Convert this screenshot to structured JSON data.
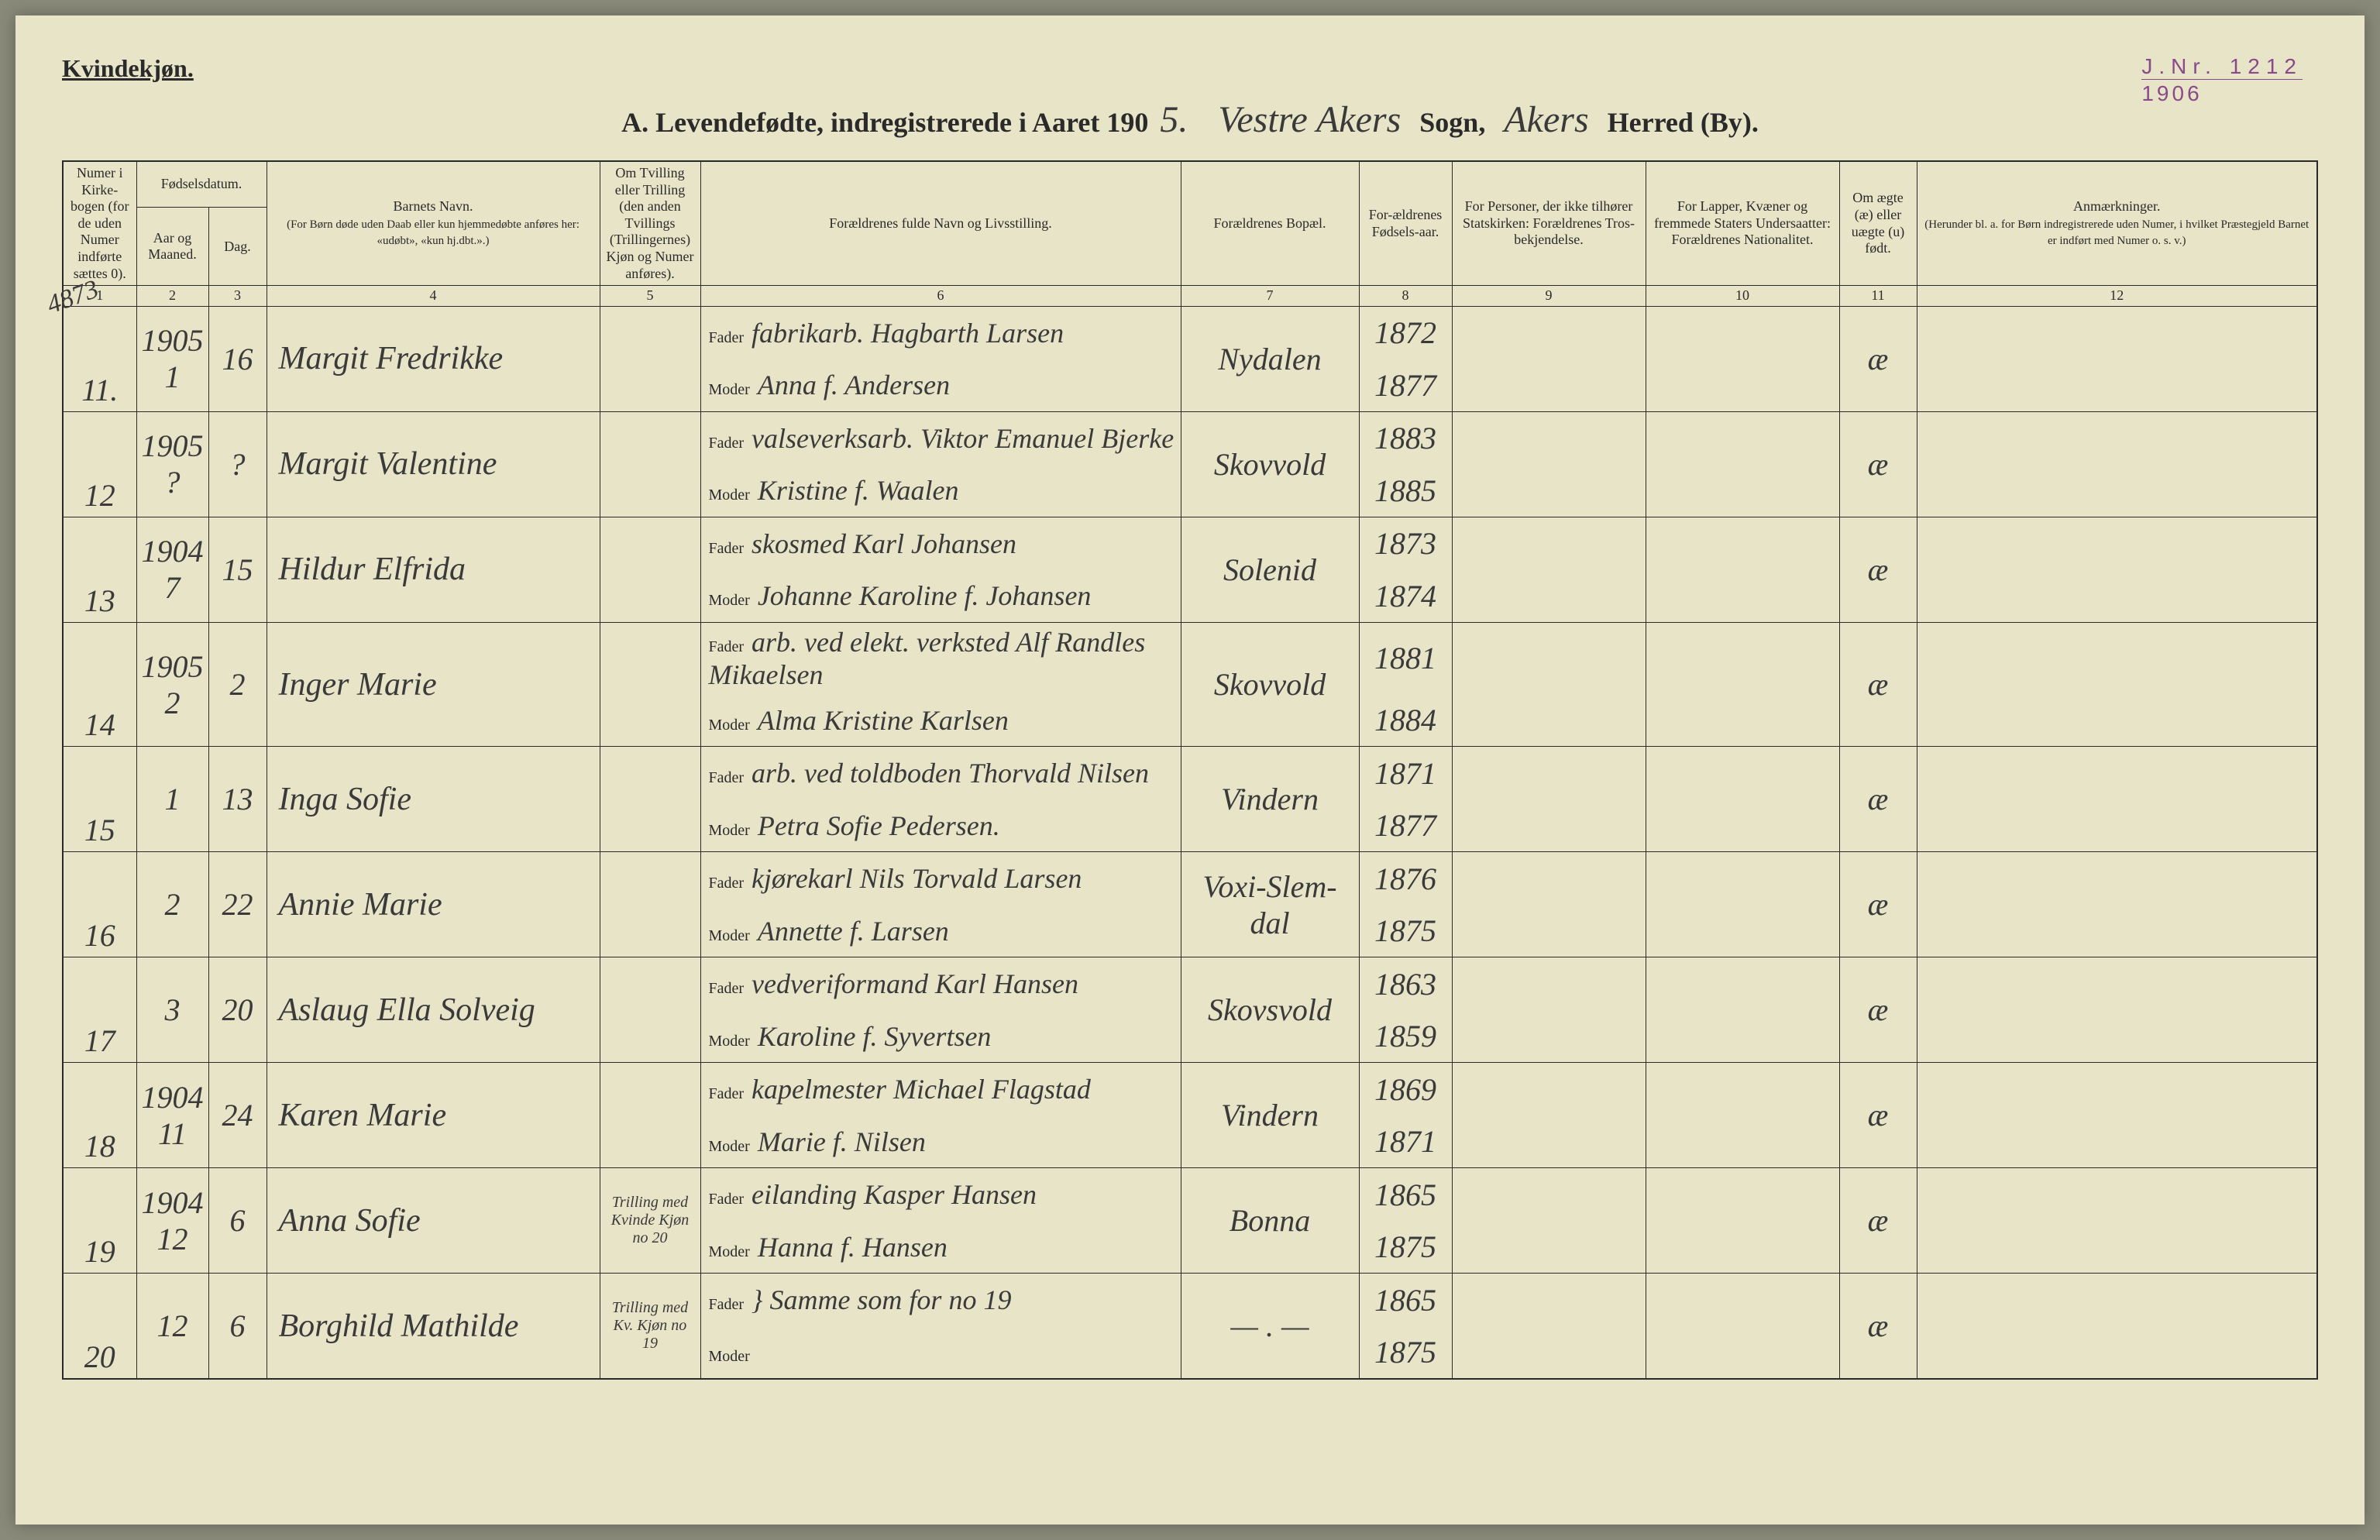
{
  "header": {
    "gender": "Kvindekjøn.",
    "title_prefix": "A.  Levendefødte, indregistrerede i Aaret 190",
    "year_suffix": "5.",
    "parish_label": "Sogn,",
    "parish": "Vestre Akers",
    "district_label": "Herred (By).",
    "district": "Akers"
  },
  "stamp": {
    "jnr_label": "J.Nr.",
    "jnr": "1212",
    "year": "1906"
  },
  "margin_note": "4873",
  "columns": {
    "h1": "Numer i Kirke-bogen (for de uden Numer indførte sættes 0).",
    "h2": "Fødselsdatum.",
    "h2a": "Aar og Maaned.",
    "h2b": "Dag.",
    "h4": "Barnets Navn.",
    "h4sub": "(For Børn døde uden Daab eller kun hjemmedøbte anføres her: «udøbt», «kun hj.dbt.».)",
    "h5": "Om Tvilling eller Trilling (den anden Tvillings (Trillingernes) Kjøn og Numer anføres).",
    "h6": "Forældrenes fulde Navn og Livsstilling.",
    "h7": "Forældrenes Bopæl.",
    "h8": "For-ældrenes Fødsels-aar.",
    "h9": "For Personer, der ikke tilhører Statskirken: Forældrenes Tros-bekjendelse.",
    "h10": "For Lapper, Kvæner og fremmede Staters Undersaatter: Forældrenes Nationalitet.",
    "h11": "Om ægte (æ) eller uægte (u) født.",
    "h12": "Anmærkninger.",
    "h12sub": "(Herunder bl. a. for Børn indregistrerede uden Numer, i hvilket Præstegjeld Barnet er indført med Numer o. s. v.)"
  },
  "col_nums": [
    "1",
    "2",
    "3",
    "4",
    "5",
    "6",
    "7",
    "8",
    "9",
    "10",
    "11",
    "12"
  ],
  "parent_labels": {
    "father": "Fader",
    "mother": "Moder"
  },
  "entries": [
    {
      "num": "11.",
      "year_month": "1905  1",
      "day": "16",
      "name": "Margit Fredrikke",
      "twin": "",
      "father": "fabrikarb. Hagbarth Larsen",
      "mother": "Anna f. Andersen",
      "residence": "Nydalen",
      "father_year": "1872",
      "mother_year": "1877",
      "legit": "æ"
    },
    {
      "num": "12",
      "year_month": "1905  ?",
      "day": "?",
      "name": "Margit Valentine",
      "twin": "",
      "father": "valseverksarb. Viktor Emanuel Bjerke",
      "mother": "Kristine f. Waalen",
      "residence": "Skovvold",
      "father_year": "1883",
      "mother_year": "1885",
      "legit": "æ"
    },
    {
      "num": "13",
      "year_month": "1904  7",
      "day": "15",
      "name": "Hildur Elfrida",
      "twin": "",
      "father": "skosmed Karl Johansen",
      "mother": "Johanne Karoline f. Johansen",
      "residence": "Solenid",
      "father_year": "1873",
      "mother_year": "1874",
      "legit": "æ"
    },
    {
      "num": "14",
      "year_month": "1905  2",
      "day": "2",
      "name": "Inger Marie",
      "twin": "",
      "father": "arb. ved elekt. verksted Alf Randles Mikaelsen",
      "mother": "Alma Kristine Karlsen",
      "residence": "Skovvold",
      "father_year": "1881",
      "mother_year": "1884",
      "legit": "æ"
    },
    {
      "num": "15",
      "year_month": "1",
      "day": "13",
      "name": "Inga Sofie",
      "twin": "",
      "father": "arb. ved toldboden Thorvald Nilsen",
      "mother": "Petra Sofie Pedersen.",
      "residence": "Vindern",
      "father_year": "1871",
      "mother_year": "1877",
      "legit": "æ"
    },
    {
      "num": "16",
      "year_month": "2",
      "day": "22",
      "name": "Annie Marie",
      "twin": "",
      "father": "kjørekarl Nils Torvald Larsen",
      "mother": "Annette f. Larsen",
      "residence": "Voxi-Slem-dal",
      "father_year": "1876",
      "mother_year": "1875",
      "legit": "æ"
    },
    {
      "num": "17",
      "year_month": "3",
      "day": "20",
      "name": "Aslaug Ella Solveig",
      "twin": "",
      "father": "vedveriformand Karl Hansen",
      "mother": "Karoline f. Syvertsen",
      "residence": "Skovsvold",
      "father_year": "1863",
      "mother_year": "1859",
      "legit": "æ"
    },
    {
      "num": "18",
      "year_month": "1904  11",
      "day": "24",
      "name": "Karen Marie",
      "twin": "",
      "father": "kapelmester Michael Flagstad",
      "mother": "Marie f. Nilsen",
      "residence": "Vindern",
      "father_year": "1869",
      "mother_year": "1871",
      "legit": "æ"
    },
    {
      "num": "19",
      "year_month": "1904  12",
      "day": "6",
      "name": "Anna Sofie",
      "twin": "Trilling med Kvinde Kjøn no 20",
      "father": "eilanding Kasper Hansen",
      "mother": "Hanna f. Hansen",
      "residence": "Bonna",
      "father_year": "1865",
      "mother_year": "1875",
      "legit": "æ"
    },
    {
      "num": "20",
      "year_month": "12",
      "day": "6",
      "name": "Borghild Mathilde",
      "twin": "Trilling med Kv. Kjøn no 19",
      "father": "} Samme som for no 19",
      "mother": "",
      "residence": "— . —",
      "father_year": "1865",
      "mother_year": "1875",
      "legit": "æ"
    }
  ]
}
